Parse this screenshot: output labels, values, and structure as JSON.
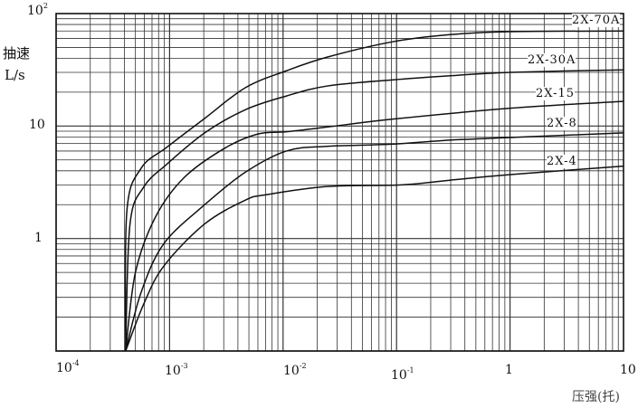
{
  "chart_data": {
    "type": "line",
    "title": "",
    "xlabel": "压强(托)",
    "ylabel": [
      "抽速",
      "L/s"
    ],
    "xscale": "log",
    "yscale": "log",
    "xlim": [
      0.0001,
      10
    ],
    "ylim": [
      0.1,
      100
    ],
    "grid": true,
    "x_ticks": [
      {
        "base": "10",
        "exp": "-4"
      },
      {
        "base": "10",
        "exp": "-3"
      },
      {
        "base": "10",
        "exp": "-2"
      },
      {
        "base": "10",
        "exp": "-1"
      },
      {
        "base": "1",
        "exp": ""
      },
      {
        "base": "10",
        "exp": ""
      }
    ],
    "y_ticks": [
      {
        "base": "10",
        "exp": "2"
      },
      {
        "base": "10",
        "exp": ""
      },
      {
        "base": "1",
        "exp": ""
      }
    ],
    "line_color": "#111111",
    "series": [
      {
        "name": "2X-70A",
        "x": [
          0.00041,
          0.00042,
          0.00056,
          0.00095,
          0.00204,
          0.00468,
          0.0107,
          0.0245,
          0.091,
          0.295,
          1,
          10
        ],
        "y": [
          0.1,
          1.74,
          4.2,
          6.5,
          11.7,
          22,
          31,
          41,
          56,
          65,
          69,
          70
        ]
      },
      {
        "name": "2X-30A",
        "x": [
          0.00041,
          0.000447,
          0.00059,
          0.00095,
          0.00204,
          0.00468,
          0.0107,
          0.0245,
          0.091,
          0.295,
          1,
          10
        ],
        "y": [
          0.1,
          1.32,
          2.86,
          4.6,
          8.7,
          14,
          18.5,
          22.7,
          25.7,
          28,
          30,
          31.6
        ]
      },
      {
        "name": "2X-15",
        "x": [
          0.00041,
          0.0005,
          0.00075,
          0.00135,
          0.0031,
          0.006,
          0.0107,
          0.0245,
          0.091,
          1,
          10
        ],
        "y": [
          0.1,
          0.5,
          1.55,
          3.5,
          6.4,
          8.5,
          8.9,
          9.8,
          11.5,
          14.4,
          16.6
        ]
      },
      {
        "name": "2X-8",
        "x": [
          0.00041,
          0.00056,
          0.00089,
          0.00204,
          0.00468,
          0.0107,
          0.0245,
          0.091,
          0.295,
          1,
          10
        ],
        "y": [
          0.1,
          0.33,
          0.9,
          2.0,
          3.9,
          6.0,
          6.6,
          6.9,
          7.5,
          7.9,
          8.7
        ]
      },
      {
        "name": "2X-4",
        "x": [
          0.00041,
          0.00059,
          0.00089,
          0.00204,
          0.00468,
          0.0071,
          0.0245,
          0.11,
          0.295,
          1,
          10
        ],
        "y": [
          0.1,
          0.26,
          0.57,
          1.35,
          2.2,
          2.45,
          2.9,
          3.0,
          3.3,
          3.7,
          4.4
        ]
      }
    ]
  }
}
